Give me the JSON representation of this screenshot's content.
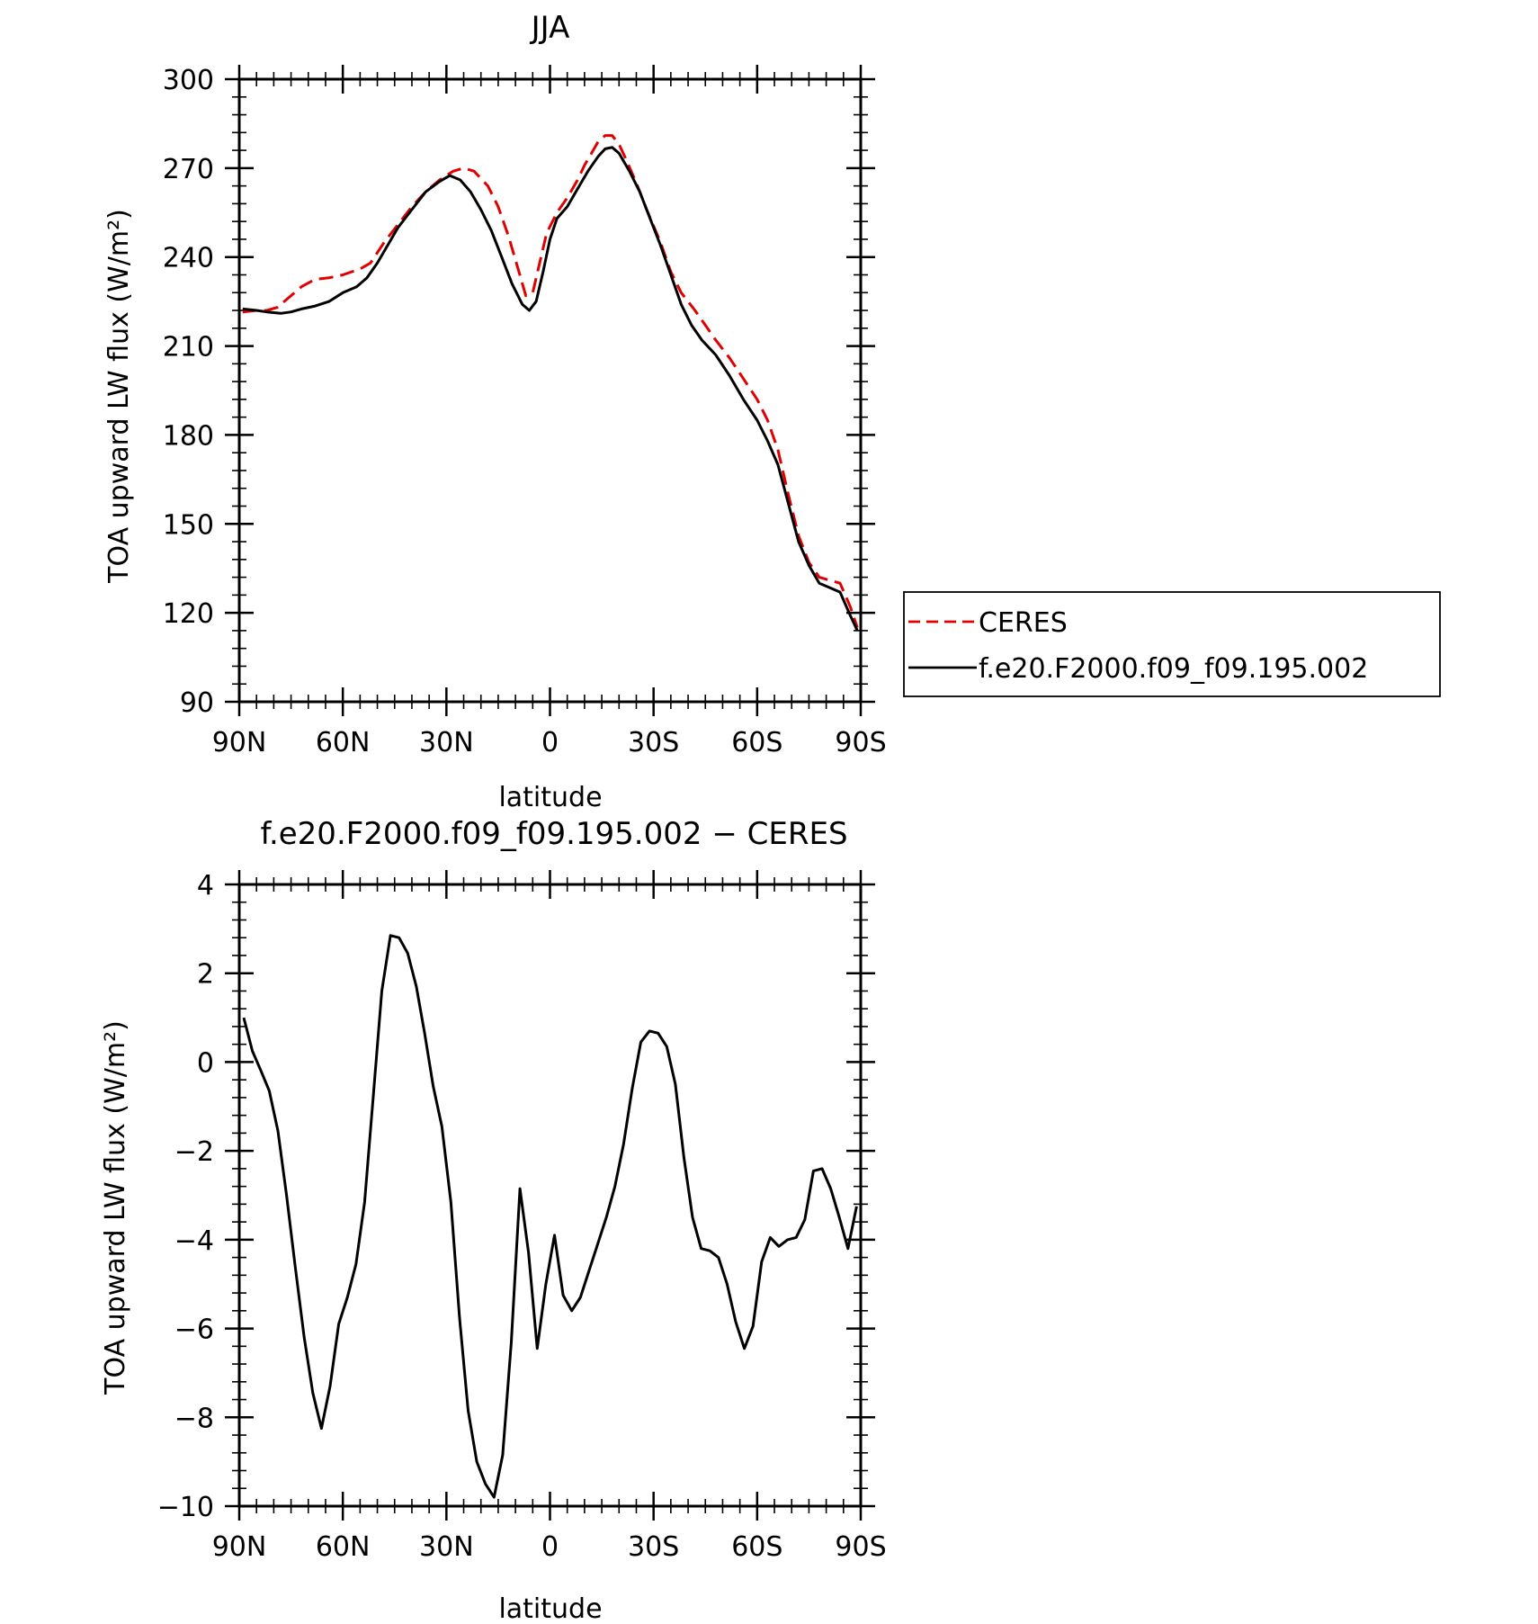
{
  "chart_data": [
    {
      "type": "line",
      "title": "JJA",
      "xlabel": "latitude",
      "ylabel": "TOA upward LW flux (W/m²)",
      "xlim": [
        90,
        -90
      ],
      "ylim": [
        90,
        300
      ],
      "xticks": [
        90,
        60,
        30,
        0,
        -30,
        -60,
        -90
      ],
      "xtick_labels": [
        "90N",
        "60N",
        "30N",
        "0",
        "30S",
        "60S",
        "90S"
      ],
      "yticks": [
        90,
        120,
        150,
        180,
        210,
        240,
        270,
        300
      ],
      "ytick_labels": [
        "90",
        "120",
        "150",
        "180",
        "210",
        "240",
        "270",
        "300"
      ],
      "grid": false,
      "legend_position": "right",
      "series": [
        {
          "name": "CERES",
          "color": "#e00000",
          "style": "dashed",
          "points": [
            [
              89,
              221.5
            ],
            [
              85,
              222
            ],
            [
              82,
              222
            ],
            [
              79,
              223
            ],
            [
              75,
              227
            ],
            [
              72,
              230
            ],
            [
              68,
              232.5
            ],
            [
              64,
              233
            ],
            [
              60,
              234
            ],
            [
              55,
              236
            ],
            [
              52,
              238
            ],
            [
              48,
              245
            ],
            [
              44,
              251
            ],
            [
              40,
              257
            ],
            [
              36,
              262
            ],
            [
              32,
              266
            ],
            [
              28,
              269
            ],
            [
              25,
              270
            ],
            [
              22,
              269
            ],
            [
              18,
              264
            ],
            [
              15,
              257
            ],
            [
              12,
              247
            ],
            [
              9,
              235
            ],
            [
              7,
              227
            ],
            [
              5,
              228
            ],
            [
              3,
              238
            ],
            [
              1,
              248
            ],
            [
              -2,
              255
            ],
            [
              -5,
              260
            ],
            [
              -8,
              266
            ],
            [
              -10,
              271
            ],
            [
              -12,
              275
            ],
            [
              -14,
              279
            ],
            [
              -16,
              281
            ],
            [
              -18,
              281
            ],
            [
              -20,
              278
            ],
            [
              -22,
              273
            ],
            [
              -25,
              265
            ],
            [
              -28,
              256
            ],
            [
              -32,
              245
            ],
            [
              -35,
              235
            ],
            [
              -38,
              228
            ],
            [
              -42,
              222
            ],
            [
              -45,
              217
            ],
            [
              -48,
              212
            ],
            [
              -52,
              206
            ],
            [
              -56,
              199
            ],
            [
              -60,
              192
            ],
            [
              -63,
              185
            ],
            [
              -66,
              175
            ],
            [
              -69,
              160
            ],
            [
              -72,
              146
            ],
            [
              -75,
              137
            ],
            [
              -78,
              132
            ],
            [
              -81,
              131
            ],
            [
              -84,
              130
            ],
            [
              -87,
              122
            ],
            [
              -89,
              115
            ]
          ]
        },
        {
          "name": "f.e20.F2000.f09_f09.195.002",
          "color": "#000000",
          "style": "solid",
          "points": [
            [
              89,
              222.5
            ],
            [
              85,
              222
            ],
            [
              82,
              221.5
            ],
            [
              78,
              221
            ],
            [
              75,
              221.5
            ],
            [
              72,
              222.5
            ],
            [
              68,
              223.5
            ],
            [
              64,
              225
            ],
            [
              60,
              228
            ],
            [
              56,
              230
            ],
            [
              53,
              233
            ],
            [
              50,
              238
            ],
            [
              47,
              244
            ],
            [
              44,
              250
            ],
            [
              40,
              256
            ],
            [
              36,
              262
            ],
            [
              32,
              265.5
            ],
            [
              29,
              267.5
            ],
            [
              26,
              266
            ],
            [
              23,
              262
            ],
            [
              20,
              256
            ],
            [
              17,
              249
            ],
            [
              14,
              240
            ],
            [
              11,
              231
            ],
            [
              8,
              224
            ],
            [
              6,
              222
            ],
            [
              4,
              225
            ],
            [
              2,
              235
            ],
            [
              0,
              246
            ],
            [
              -2,
              253
            ],
            [
              -5,
              257
            ],
            [
              -8,
              263
            ],
            [
              -11,
              269
            ],
            [
              -14,
              274
            ],
            [
              -16,
              276.5
            ],
            [
              -18,
              277
            ],
            [
              -20,
              275
            ],
            [
              -23,
              269
            ],
            [
              -26,
              262
            ],
            [
              -29,
              253
            ],
            [
              -32,
              244
            ],
            [
              -35,
              234
            ],
            [
              -38,
              224
            ],
            [
              -41,
              217
            ],
            [
              -44,
              212
            ],
            [
              -48,
              207
            ],
            [
              -52,
              200
            ],
            [
              -56,
              192
            ],
            [
              -60,
              185
            ],
            [
              -63,
              178
            ],
            [
              -66,
              170
            ],
            [
              -69,
              157
            ],
            [
              -72,
              144
            ],
            [
              -75,
              136
            ],
            [
              -78,
              130
            ],
            [
              -81,
              128.5
            ],
            [
              -84,
              127
            ],
            [
              -87,
              119
            ],
            [
              -89,
              114
            ]
          ]
        }
      ]
    },
    {
      "type": "line",
      "title": "f.e20.F2000.f09_f09.195.002 − CERES",
      "xlabel": "latitude",
      "ylabel": "TOA upward LW flux (W/m²)",
      "xlim": [
        90,
        -90
      ],
      "ylim": [
        -10,
        4
      ],
      "xticks": [
        90,
        60,
        30,
        0,
        -30,
        -60,
        -90
      ],
      "xtick_labels": [
        "90N",
        "60N",
        "30N",
        "0",
        "30S",
        "60S",
        "90S"
      ],
      "yticks": [
        -10,
        -8,
        -6,
        -4,
        -2,
        0,
        2,
        4
      ],
      "ytick_labels": [
        "−10",
        "−8",
        "−6",
        "−4",
        "−2",
        "0",
        "2",
        "4"
      ],
      "grid": false,
      "series": [
        {
          "color": "#000000",
          "style": "solid",
          "points": [
            [
              88.7,
              1.0
            ],
            [
              86.2,
              0.25
            ],
            [
              83.7,
              -0.2
            ],
            [
              81.3,
              -0.65
            ],
            [
              78.8,
              -1.55
            ],
            [
              76.3,
              -3.0
            ],
            [
              73.8,
              -4.6
            ],
            [
              71.2,
              -6.2
            ],
            [
              68.7,
              -7.45
            ],
            [
              66.2,
              -8.25
            ],
            [
              63.7,
              -7.3
            ],
            [
              61.2,
              -5.9
            ],
            [
              58.7,
              -5.3
            ],
            [
              56.2,
              -4.55
            ],
            [
              53.7,
              -3.15
            ],
            [
              51.2,
              -0.8
            ],
            [
              48.7,
              1.6
            ],
            [
              46.2,
              2.85
            ],
            [
              43.7,
              2.8
            ],
            [
              41.2,
              2.45
            ],
            [
              38.7,
              1.7
            ],
            [
              36.3,
              0.65
            ],
            [
              33.8,
              -0.55
            ],
            [
              31.3,
              -1.45
            ],
            [
              28.7,
              -3.15
            ],
            [
              26.2,
              -5.75
            ],
            [
              23.7,
              -7.85
            ],
            [
              21.2,
              -9.0
            ],
            [
              18.7,
              -9.5
            ],
            [
              16.2,
              -9.8
            ],
            [
              13.7,
              -8.85
            ],
            [
              11.2,
              -6.3
            ],
            [
              8.7,
              -2.85
            ],
            [
              6.2,
              -4.3
            ],
            [
              3.7,
              -6.45
            ],
            [
              1.2,
              -5.0
            ],
            [
              -1.3,
              -3.9
            ],
            [
              -3.8,
              -5.25
            ],
            [
              -6.3,
              -5.6
            ],
            [
              -8.8,
              -5.3
            ],
            [
              -11.3,
              -4.7
            ],
            [
              -13.8,
              -4.1
            ],
            [
              -16.3,
              -3.5
            ],
            [
              -18.8,
              -2.8
            ],
            [
              -21.3,
              -1.85
            ],
            [
              -23.8,
              -0.6
            ],
            [
              -26.3,
              0.45
            ],
            [
              -28.8,
              0.7
            ],
            [
              -31.3,
              0.65
            ],
            [
              -33.8,
              0.35
            ],
            [
              -36.3,
              -0.5
            ],
            [
              -38.8,
              -2.15
            ],
            [
              -41.3,
              -3.5
            ],
            [
              -43.8,
              -4.2
            ],
            [
              -46.3,
              -4.25
            ],
            [
              -48.8,
              -4.4
            ],
            [
              -51.3,
              -5.0
            ],
            [
              -53.8,
              -5.85
            ],
            [
              -56.3,
              -6.45
            ],
            [
              -58.8,
              -5.95
            ],
            [
              -61.3,
              -4.5
            ],
            [
              -63.8,
              -3.95
            ],
            [
              -66.3,
              -4.15
            ],
            [
              -68.8,
              -4.0
            ],
            [
              -71.3,
              -3.95
            ],
            [
              -73.8,
              -3.55
            ],
            [
              -76.3,
              -2.45
            ],
            [
              -78.8,
              -2.4
            ],
            [
              -81.3,
              -2.85
            ],
            [
              -83.8,
              -3.5
            ],
            [
              -86.3,
              -4.2
            ],
            [
              -88.8,
              -3.25
            ]
          ]
        }
      ]
    }
  ],
  "legend": {
    "entries": [
      {
        "label": "CERES",
        "color": "#e00000",
        "style": "dashed"
      },
      {
        "label": "f.e20.F2000.f09_f09.195.002",
        "color": "#000000",
        "style": "solid"
      }
    ]
  }
}
